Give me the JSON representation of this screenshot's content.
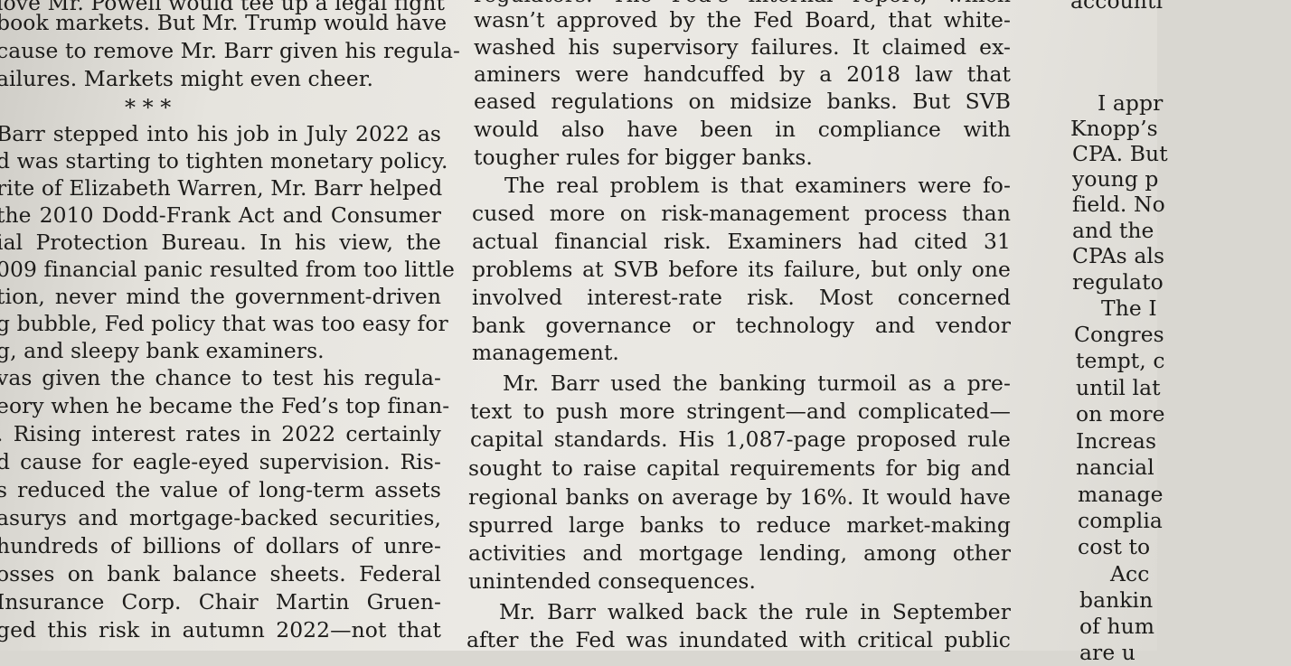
{
  "left_column": {
    "lines": [
      "love Mr. Powell would tee up a legal fight",
      "book markets. But Mr. Trump would have",
      "cause to remove Mr. Barr given his regula-",
      "ailures. Markets might even cheer.",
      "",
      "Barr stepped into his job in July 2022 as",
      "d was starting to tighten monetary policy.",
      "rite of Elizabeth Warren, Mr. Barr helped",
      "the 2010 Dodd-Frank Act and Consumer",
      "ial Protection Bureau. In his view, the",
      "009 financial panic resulted from too little",
      "tion, never mind the government-driven",
      "g bubble, Fed policy that was too easy for",
      "g, and sleepy bank examiners.",
      "vas given the chance to test his regula-",
      "eory when he became the Fed’s top finan-",
      ". Rising interest rates in 2022 certainly",
      "d cause for eagle-eyed supervision. Ris-",
      "s reduced the value of long-term assets",
      "asurys and mortgage-backed securities,",
      "hundreds of billions of dollars of unre-",
      "osses on bank balance sheets. Federal",
      "Insurance Corp. Chair Martin Gruen-",
      "ged this risk in autumn 2022—not that"
    ],
    "separator": "*   *   *"
  },
  "middle_column": {
    "lines": [
      "regulators. The Fed’s internal report, which",
      "wasn’t approved by the Fed Board, that white-",
      "washed his supervisory failures. It claimed ex-",
      "aminers were handcuffed by a 2018 law that",
      "eased regulations on midsize banks. But SVB",
      "would also have been in compliance with",
      "tougher rules for bigger banks.",
      "The real problem is that examiners were fo-",
      "cused more on risk-management process than",
      "actual financial risk. Examiners had cited 31",
      "problems at SVB before its failure, but only one",
      "involved interest-rate risk. Most concerned",
      "bank governance or technology and vendor",
      "management.",
      "Mr. Barr used the banking turmoil as a pre-",
      "text to push more stringent—and complicated—",
      "capital standards. His 1,087-page proposed rule",
      "sought to raise capital requirements for big and",
      "regional banks on average by 16%. It would have",
      "spurred large banks to reduce market-making",
      "activities and mortgage lending, among other",
      "unintended consequences.",
      "Mr. Barr walked back the rule in September",
      "after the Fed was inundated with critical public"
    ]
  },
  "right_column": {
    "lines": [
      "accounti",
      "I appr",
      "Knopp’s",
      "CPA. But",
      "young p",
      "field. No",
      "and the",
      "CPAs als",
      "regulato",
      "The I",
      "Congres",
      "tempt, c",
      "until lat",
      "on more",
      "Increas",
      "nancial",
      "manage",
      "complia",
      "cost to",
      "Acc",
      "bankin",
      "of hum",
      "are u"
    ]
  }
}
